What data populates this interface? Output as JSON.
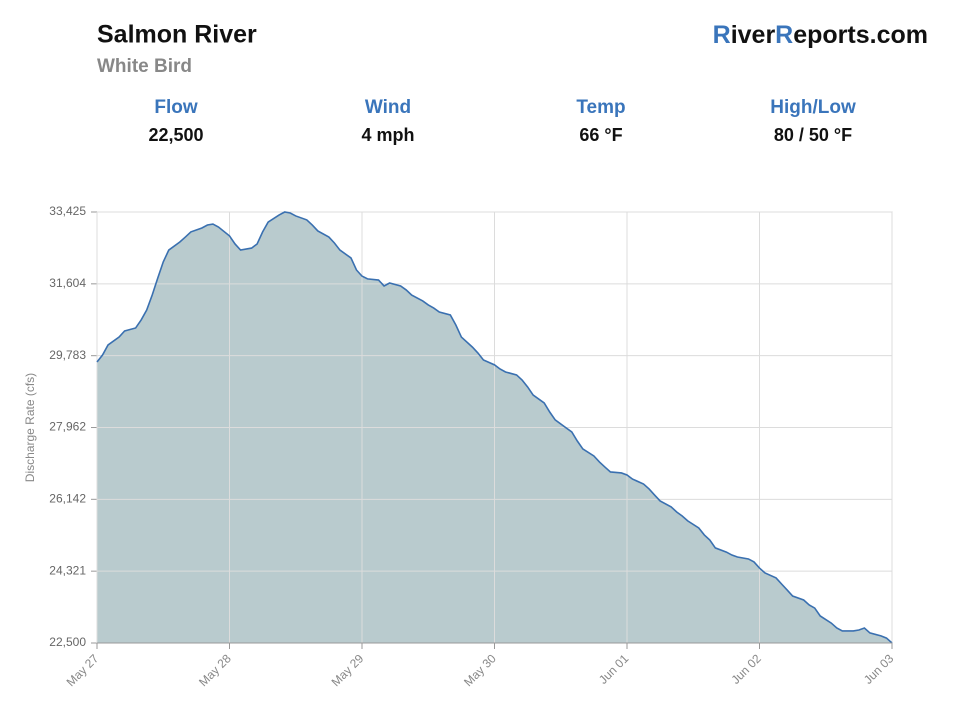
{
  "header": {
    "title": "Salmon River",
    "subtitle": "White Bird",
    "logo": {
      "parts": [
        "R",
        "iver",
        "R",
        "eports.com"
      ]
    }
  },
  "stats": [
    {
      "label": "Flow",
      "value": "22,500"
    },
    {
      "label": "Wind",
      "value": "4 mph"
    },
    {
      "label": "Temp",
      "value": "66 °F"
    },
    {
      "label": "High/Low",
      "value": "80 / 50 °F"
    }
  ],
  "chart_data": {
    "type": "area",
    "y_label": "Discharge Rate (cfs)",
    "color": "#3a70b0",
    "fill": "#b9cbce",
    "grid": true,
    "xlim": [
      0,
      144
    ],
    "xticks": [
      {
        "value": 0,
        "label": "May 27"
      },
      {
        "value": 24,
        "label": "May 28"
      },
      {
        "value": 48,
        "label": "May 29"
      },
      {
        "value": 72,
        "label": "May 30"
      },
      {
        "value": 96,
        "label": "Jun 01"
      },
      {
        "value": 120,
        "label": "Jun 02"
      },
      {
        "value": 144,
        "label": "Jun 03"
      }
    ],
    "ylim": [
      22500,
      33425
    ],
    "yticks": [
      {
        "value": 22500,
        "label": "22,500"
      },
      {
        "value": 24321,
        "label": "24,321"
      },
      {
        "value": 26142,
        "label": "26,142"
      },
      {
        "value": 27962,
        "label": "27,962"
      },
      {
        "value": 29783,
        "label": "29,783"
      },
      {
        "value": 31604,
        "label": "31,604"
      },
      {
        "value": 33425,
        "label": "33,425"
      }
    ],
    "x": [
      0,
      1,
      2,
      4,
      5,
      7,
      8,
      9,
      10,
      11,
      12,
      13,
      15,
      16,
      17,
      19,
      20,
      21,
      22,
      24,
      25,
      26,
      28,
      29,
      30,
      31,
      33,
      34,
      35,
      36,
      38,
      39,
      40,
      42,
      43,
      44,
      46,
      47,
      48,
      49,
      51,
      52,
      53,
      55,
      56,
      57,
      59,
      60,
      61,
      62,
      64,
      65,
      66,
      68,
      69,
      70,
      72,
      73,
      74,
      76,
      77,
      78,
      79,
      81,
      82,
      83,
      85,
      86,
      87,
      88,
      90,
      91,
      92,
      93,
      95,
      96,
      97,
      99,
      100,
      101,
      102,
      104,
      105,
      106,
      107,
      109,
      110,
      111,
      112,
      114,
      115,
      116,
      118,
      119,
      120,
      121,
      123,
      124,
      125,
      126,
      128,
      129,
      130,
      131,
      133,
      134,
      135,
      137,
      138,
      139,
      140,
      142,
      143,
      144
    ],
    "values": [
      29623,
      29800,
      30055,
      30257,
      30410,
      30485,
      30690,
      30940,
      31320,
      31750,
      32160,
      32460,
      32665,
      32790,
      32920,
      33020,
      33095,
      33120,
      33045,
      32820,
      32615,
      32460,
      32510,
      32615,
      32920,
      33170,
      33350,
      33425,
      33400,
      33325,
      33225,
      33095,
      32945,
      32790,
      32640,
      32460,
      32260,
      31955,
      31800,
      31730,
      31700,
      31550,
      31625,
      31550,
      31450,
      31320,
      31170,
      31070,
      30990,
      30890,
      30815,
      30560,
      30255,
      30000,
      29850,
      29675,
      29550,
      29445,
      29370,
      29295,
      29165,
      28990,
      28785,
      28585,
      28355,
      28155,
      27950,
      27850,
      27620,
      27420,
      27240,
      27090,
      26960,
      26835,
      26810,
      26760,
      26655,
      26530,
      26405,
      26250,
      26100,
      25950,
      25820,
      25720,
      25595,
      25415,
      25240,
      25110,
      24910,
      24805,
      24730,
      24680,
      24630,
      24555,
      24400,
      24275,
      24150,
      23995,
      23845,
      23690,
      23590,
      23465,
      23385,
      23185,
      23005,
      22880,
      22805,
      22805,
      22830,
      22880,
      22755,
      22680,
      22625,
      22500
    ]
  }
}
